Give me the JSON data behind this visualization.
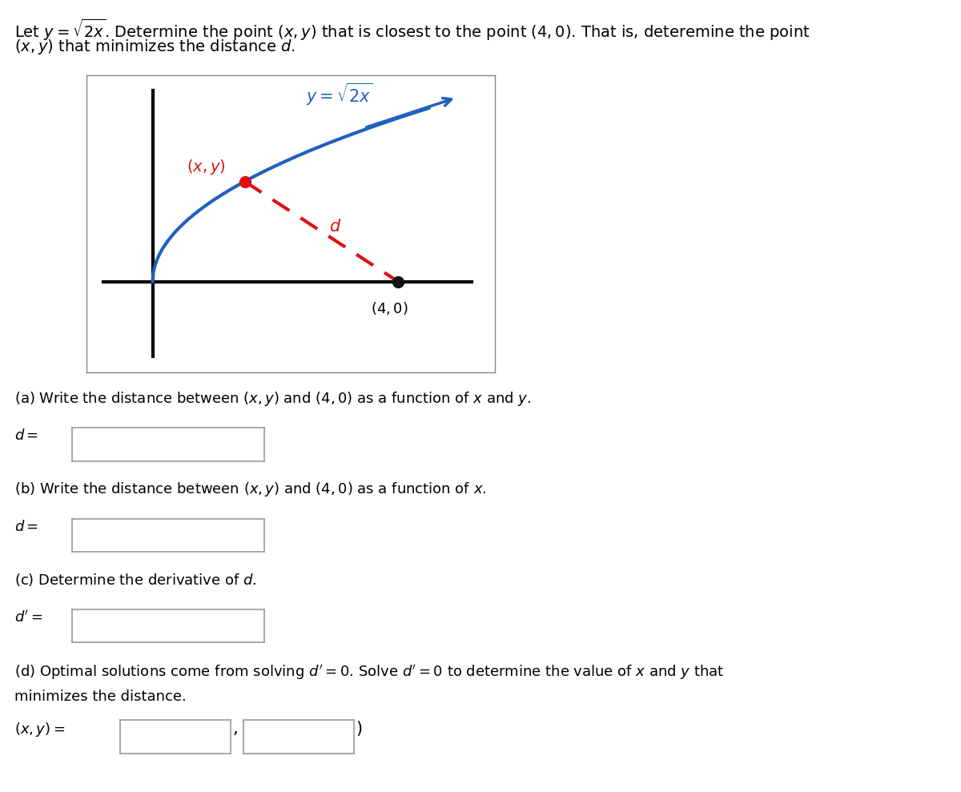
{
  "curve_color": "#2060C0",
  "dashed_color": "#DD1111",
  "point_xy_color": "#DD1111",
  "point_40_color": "#111111",
  "axis_color": "#000000",
  "label_xy": "$(x, y)$",
  "label_40": "$(4, 0)$",
  "label_d": "$d$",
  "label_curve": "$y = \\sqrt{2x}$",
  "part_a_text": "(a) Write the distance between $(x, y)$ and $(4, 0)$ as a function of $x$ and $y$.",
  "part_b_text": "(b) Write the distance between $(x, y)$ and $(4, 0)$ as a function of $x$.",
  "part_c_text": "(c) Determine the derivative of $d$.",
  "part_d_text": "(d) Optimal solutions come from solving $d' = 0$. Solve $d' = 0$ to determine the value of $x$ and $y$ that\nminimizes the distance.",
  "label_d_eq": "$d =$",
  "label_dprime_eq": "$d' =$",
  "label_xy_eq": "$(x, y) =$",
  "background_color": "#ffffff",
  "text_color": "#000000",
  "font_size_title": 14,
  "font_size_body": 13,
  "graph_border_color": "#888888",
  "box_border_color": "#999999"
}
